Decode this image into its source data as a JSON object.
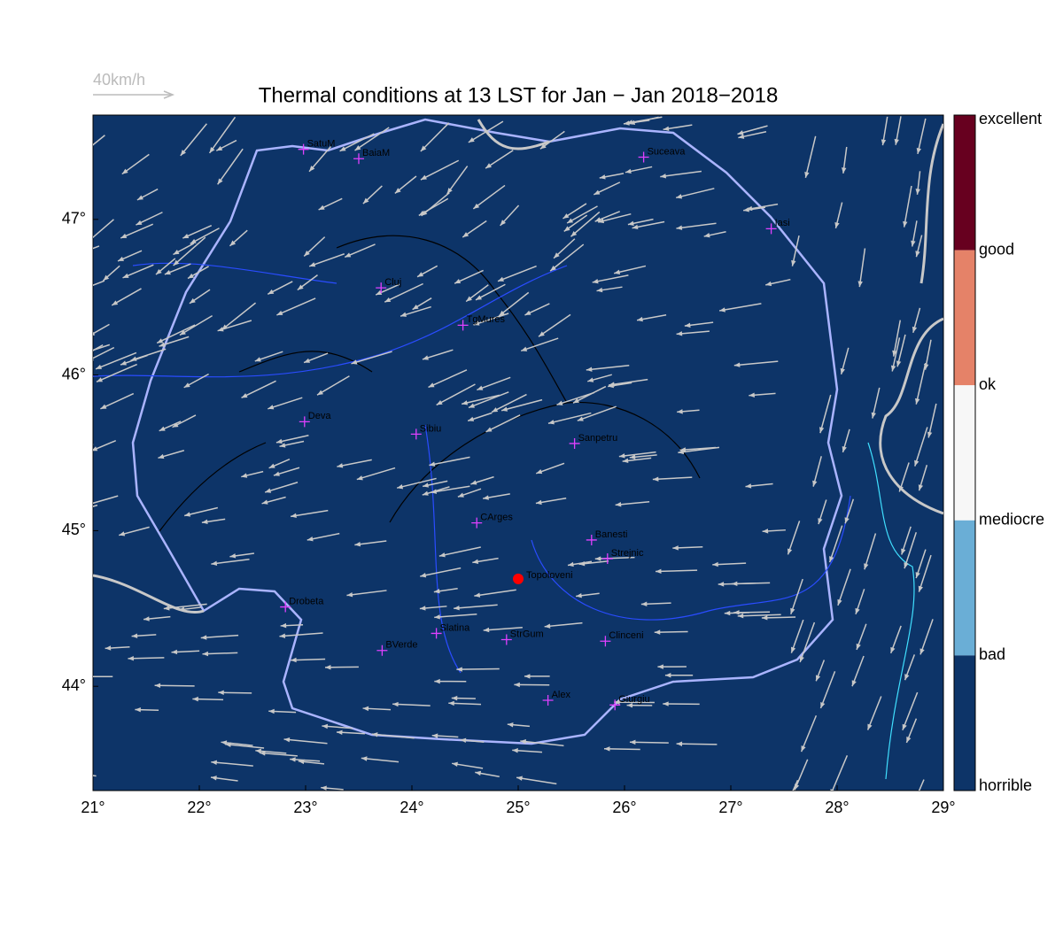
{
  "header": {
    "title": "Thermal conditions at 13 LST for Jan − Jan  2018−2018",
    "wind_scale": "40km/h"
  },
  "map": {
    "xlim": [
      21,
      29
    ],
    "ylim": [
      43.33,
      47.67
    ],
    "xticks": [
      {
        "value": 21,
        "label": "21°"
      },
      {
        "value": 22,
        "label": "22°"
      },
      {
        "value": 23,
        "label": "23°"
      },
      {
        "value": 24,
        "label": "24°"
      },
      {
        "value": 25,
        "label": "25°"
      },
      {
        "value": 26,
        "label": "26°"
      },
      {
        "value": 27,
        "label": "27°"
      },
      {
        "value": 28,
        "label": "28°"
      },
      {
        "value": 29,
        "label": "29°"
      }
    ],
    "yticks": [
      {
        "value": 44,
        "label": "44°"
      },
      {
        "value": 45,
        "label": "45°"
      },
      {
        "value": 46,
        "label": "46°"
      },
      {
        "value": 47,
        "label": "47°"
      }
    ],
    "cities": [
      {
        "name": "SatuM",
        "lon": 22.98,
        "lat": 47.45
      },
      {
        "name": "BaiaM",
        "lon": 23.5,
        "lat": 47.39
      },
      {
        "name": "Suceava",
        "lon": 26.18,
        "lat": 47.4
      },
      {
        "name": "Iasi",
        "lon": 27.38,
        "lat": 46.94
      },
      {
        "name": "Cluj",
        "lon": 23.71,
        "lat": 46.56
      },
      {
        "name": "TgMures",
        "lon": 24.48,
        "lat": 46.32
      },
      {
        "name": "Deva",
        "lon": 22.99,
        "lat": 45.7
      },
      {
        "name": "Sibiu",
        "lon": 24.04,
        "lat": 45.62
      },
      {
        "name": "Sanpetru",
        "lon": 25.53,
        "lat": 45.56
      },
      {
        "name": "CArges",
        "lon": 24.61,
        "lat": 45.05
      },
      {
        "name": "Banesti",
        "lon": 25.69,
        "lat": 44.94
      },
      {
        "name": "Strejnic",
        "lon": 25.84,
        "lat": 44.82
      },
      {
        "name": "Drobeta",
        "lon": 22.81,
        "lat": 44.51
      },
      {
        "name": "Slatina",
        "lon": 24.23,
        "lat": 44.34
      },
      {
        "name": "StrGum",
        "lon": 24.89,
        "lat": 44.3
      },
      {
        "name": "BVerde",
        "lon": 23.72,
        "lat": 44.23
      },
      {
        "name": "Clinceni",
        "lon": 25.82,
        "lat": 44.29
      },
      {
        "name": "Alex",
        "lon": 25.28,
        "lat": 43.91
      },
      {
        "name": "Giurgiu",
        "lon": 25.91,
        "lat": 43.88
      }
    ],
    "selected": {
      "name": "Topoloveni",
      "lon": 25.0,
      "lat": 44.69
    }
  },
  "colorbar": {
    "labels": [
      "excellent",
      "good",
      "ok",
      "mediocre",
      "bad",
      "horrible"
    ],
    "colors": [
      "#67001f",
      "#e58268",
      "#f7f7f7",
      "#6aaed6",
      "#0d3468"
    ]
  }
}
